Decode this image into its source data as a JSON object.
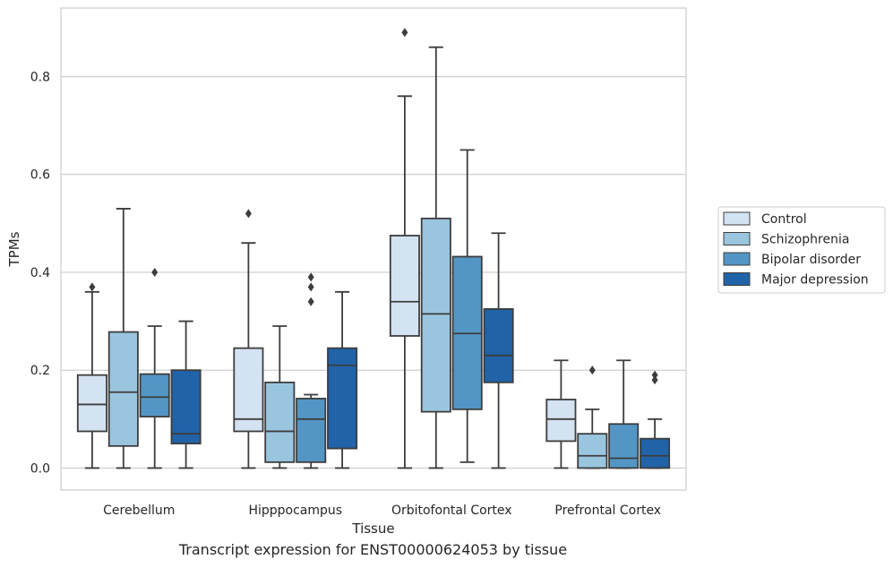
{
  "chart_data": {
    "type": "box",
    "xlabel": "Tissue",
    "ylabel": "TPMs",
    "ylim": [
      -0.045,
      0.94
    ],
    "yticks": [
      0.0,
      0.2,
      0.4,
      0.6,
      0.8
    ],
    "ytick_labels": [
      "0.0",
      "0.2",
      "0.4",
      "0.6",
      "0.8"
    ],
    "grid": true,
    "legend_position": "right",
    "categories": [
      "Cerebellum",
      "Hipppocampus",
      "Orbitofontal Cortex",
      "Prefrontal Cortex"
    ],
    "series": [
      {
        "name": "Control",
        "color": "#d4e3f2",
        "boxes": [
          {
            "whislo": 0.0,
            "q1": 0.075,
            "med": 0.13,
            "q3": 0.19,
            "whishi": 0.36,
            "fliers": [
              0.37
            ]
          },
          {
            "whislo": 0.0,
            "q1": 0.075,
            "med": 0.1,
            "q3": 0.245,
            "whishi": 0.46,
            "fliers": [
              0.52
            ]
          },
          {
            "whislo": 0.0,
            "q1": 0.27,
            "med": 0.34,
            "q3": 0.475,
            "whishi": 0.76,
            "fliers": [
              0.89
            ]
          },
          {
            "whislo": 0.0,
            "q1": 0.055,
            "med": 0.1,
            "q3": 0.14,
            "whishi": 0.22,
            "fliers": []
          }
        ]
      },
      {
        "name": "Schizophrenia",
        "color": "#9ac5df",
        "boxes": [
          {
            "whislo": 0.0,
            "q1": 0.045,
            "med": 0.155,
            "q3": 0.278,
            "whishi": 0.53,
            "fliers": []
          },
          {
            "whislo": 0.0,
            "q1": 0.012,
            "med": 0.075,
            "q3": 0.175,
            "whishi": 0.29,
            "fliers": []
          },
          {
            "whislo": 0.0,
            "q1": 0.115,
            "med": 0.315,
            "q3": 0.51,
            "whishi": 0.86,
            "fliers": []
          },
          {
            "whislo": 0.0,
            "q1": 0.0,
            "med": 0.025,
            "q3": 0.07,
            "whishi": 0.12,
            "fliers": [
              0.2
            ]
          }
        ]
      },
      {
        "name": "Bipolar disorder",
        "color": "#5396c5",
        "boxes": [
          {
            "whislo": 0.0,
            "q1": 0.105,
            "med": 0.145,
            "q3": 0.192,
            "whishi": 0.29,
            "fliers": [
              0.4
            ]
          },
          {
            "whislo": 0.0,
            "q1": 0.012,
            "med": 0.1,
            "q3": 0.142,
            "whishi": 0.15,
            "fliers": [
              0.34,
              0.37,
              0.39
            ]
          },
          {
            "whislo": 0.012,
            "q1": 0.12,
            "med": 0.275,
            "q3": 0.432,
            "whishi": 0.65,
            "fliers": []
          },
          {
            "whislo": 0.0,
            "q1": 0.0,
            "med": 0.02,
            "q3": 0.09,
            "whishi": 0.22,
            "fliers": []
          }
        ]
      },
      {
        "name": "Major depression",
        "color": "#2163a8",
        "boxes": [
          {
            "whislo": 0.0,
            "q1": 0.05,
            "med": 0.07,
            "q3": 0.2,
            "whishi": 0.3,
            "fliers": []
          },
          {
            "whislo": 0.0,
            "q1": 0.04,
            "med": 0.21,
            "q3": 0.245,
            "whishi": 0.36,
            "fliers": []
          },
          {
            "whislo": 0.0,
            "q1": 0.175,
            "med": 0.23,
            "q3": 0.325,
            "whishi": 0.48,
            "fliers": []
          },
          {
            "whislo": 0.0,
            "q1": 0.0,
            "med": 0.025,
            "q3": 0.06,
            "whishi": 0.1,
            "fliers": [
              0.18,
              0.19
            ]
          }
        ]
      }
    ]
  },
  "caption": "Transcript expression for ENST00000624053 by tissue"
}
